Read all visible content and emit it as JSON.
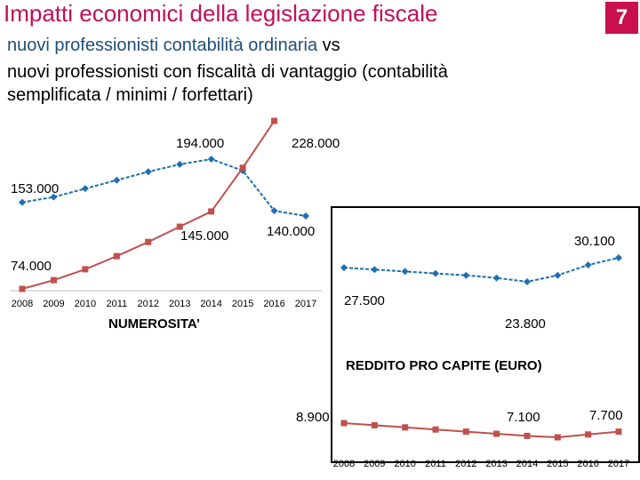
{
  "header": {
    "title": "Impatti economici della legislazione fiscale",
    "slide_number": "7",
    "subtitle_part1": "nuovi professionisti contabilità ordinaria ",
    "subtitle_vs": "vs",
    "subtitle_line2": "nuovi professionisti con fiscalità di vantaggio (contabilità",
    "subtitle_line3": "semplificata / minimi / forfettari)"
  },
  "colors": {
    "ordinaria": "#1f6fb2",
    "vantaggio": "#c0504d",
    "accent": "#c0105a"
  },
  "chart_data": [
    {
      "type": "line",
      "title": "NUMEROSITA’",
      "categories": [
        "2008",
        "2009",
        "2010",
        "2011",
        "2012",
        "2013",
        "2014",
        "2015",
        "2016",
        "2017"
      ],
      "series": [
        {
          "name": "contabilità ordinaria",
          "values": [
            153000,
            158000,
            166000,
            174000,
            182000,
            189000,
            194000,
            183000,
            145000,
            140000
          ]
        },
        {
          "name": "fiscalità di vantaggio",
          "values": [
            74000,
            82000,
            92000,
            104000,
            117000,
            131000,
            145000,
            185000,
            228000,
            null
          ]
        }
      ],
      "data_labels": [
        "194.000",
        "228.000",
        "153.000",
        "145.000",
        "140.000",
        "74.000"
      ]
    },
    {
      "type": "line",
      "title": "REDDITO PRO CAPITE (EURO)",
      "categories": [
        "2008",
        "2009",
        "2010",
        "2011",
        "2012",
        "2013",
        "2014",
        "2015",
        "2016",
        "2017"
      ],
      "series": [
        {
          "name": "contabilità ordinaria",
          "values": [
            27500,
            27000,
            26500,
            26000,
            25500,
            24800,
            23800,
            25500,
            28200,
            30100
          ]
        },
        {
          "name": "fiscalità di vantaggio",
          "values": [
            8900,
            8600,
            8300,
            8000,
            7700,
            7400,
            7100,
            6900,
            7300,
            7700
          ]
        }
      ],
      "data_labels": [
        "30.100",
        "27.500",
        "23.800",
        "8.900",
        "7.100",
        "7.700"
      ]
    }
  ]
}
